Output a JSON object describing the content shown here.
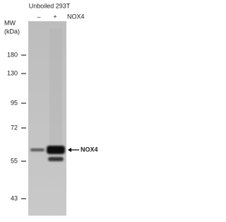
{
  "header": {
    "title": "Unboiled 293T",
    "lanes": [
      "–",
      "+"
    ],
    "lane_label": "NOX4"
  },
  "mw": {
    "label": "MW",
    "unit": "(kDa)",
    "markers": [
      180,
      130,
      95,
      72,
      55,
      43
    ]
  },
  "band": {
    "label": "NOX4"
  }
}
